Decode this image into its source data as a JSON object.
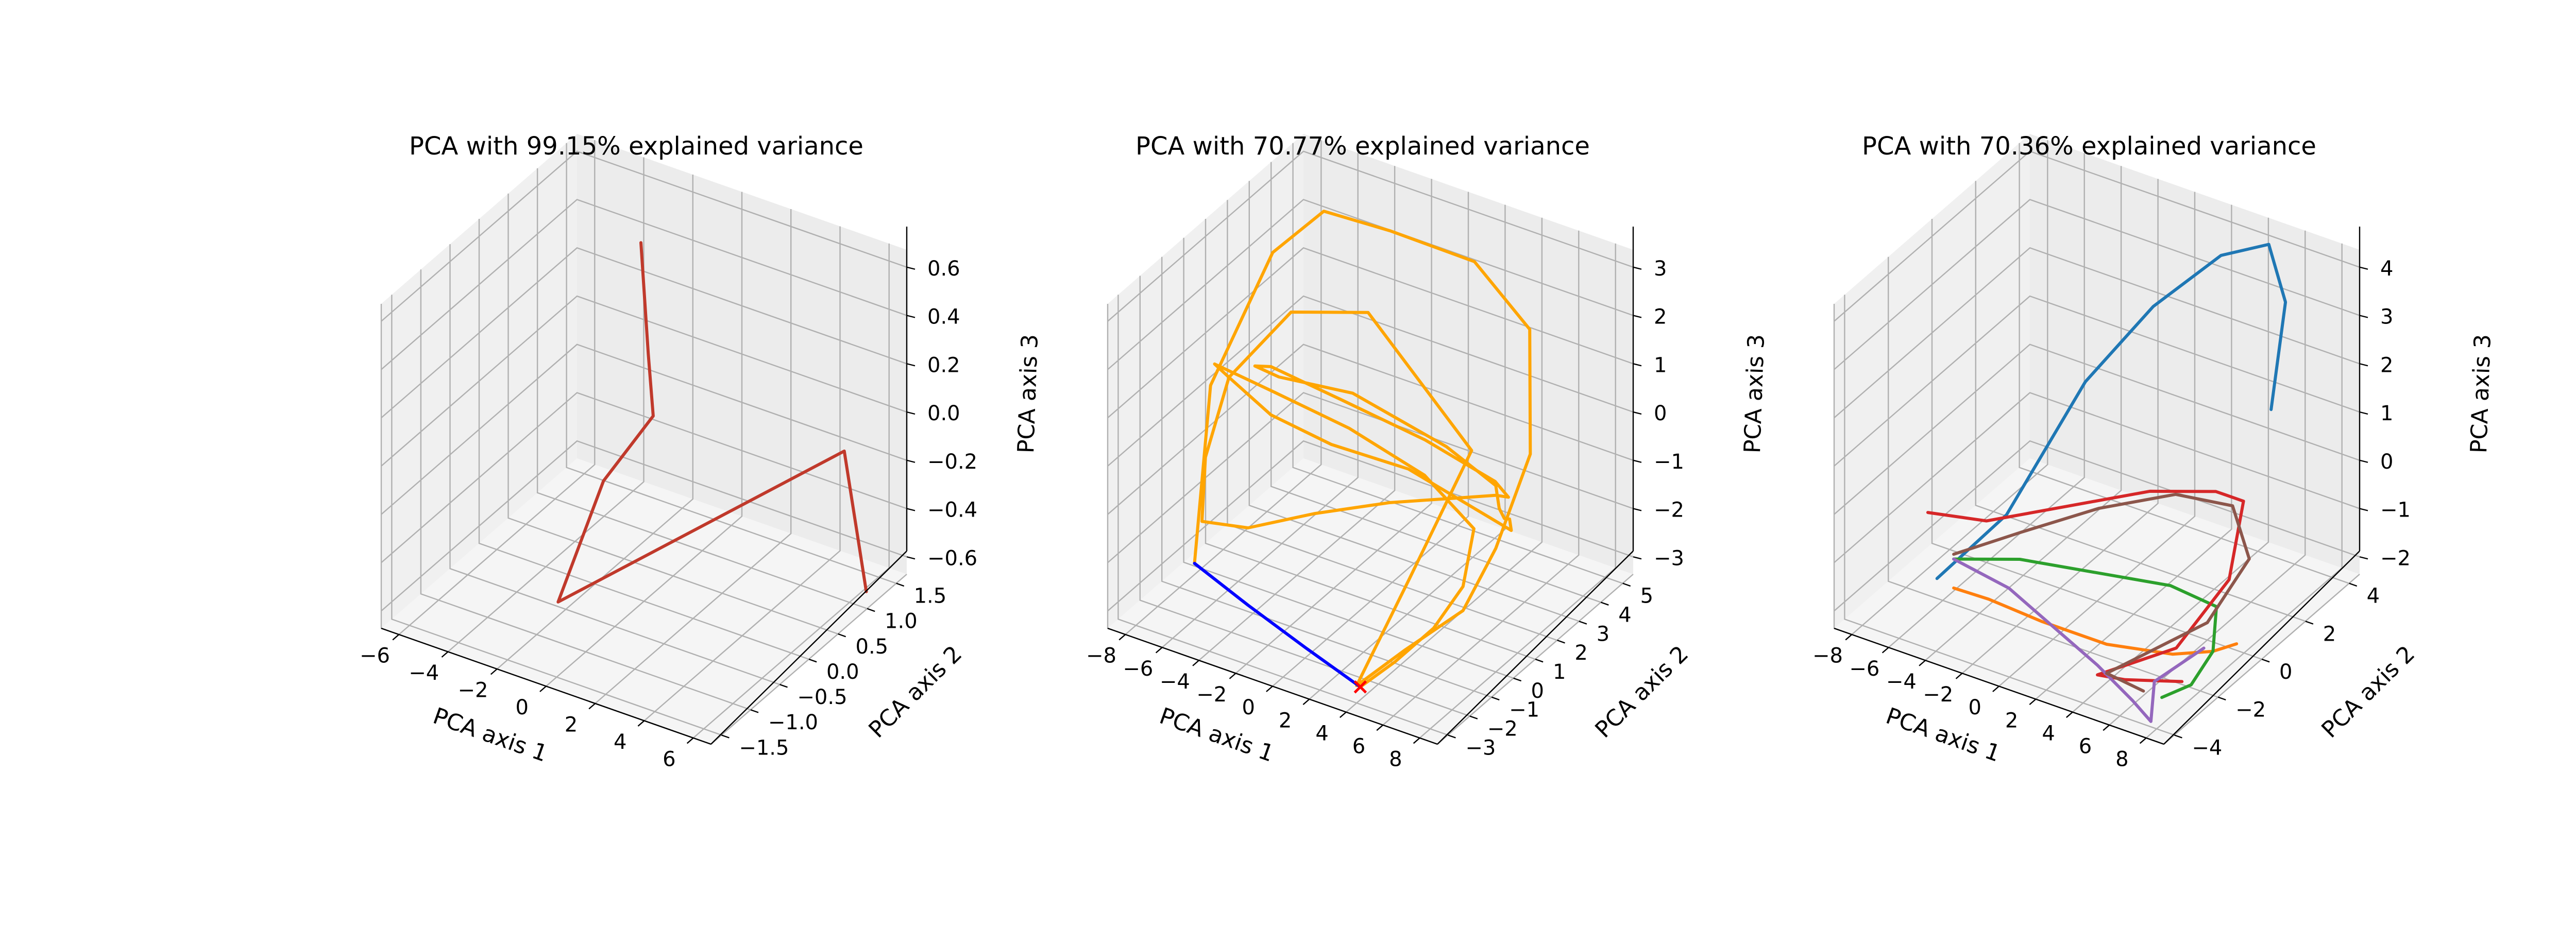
{
  "colors": {
    "red": "#c0392b",
    "orange": "#ffa500",
    "blue": "#0000ff",
    "tab_blue": "#1f77b4",
    "tab_orange": "#ff7f0e",
    "tab_green": "#2ca02c",
    "tab_red": "#d62728",
    "tab_purple": "#9467bd",
    "tab_brown": "#8c564b",
    "grid": "#b0b0b0",
    "pane": "#f2f2f2"
  },
  "chart_data": [
    {
      "type": "line3d",
      "title": "PCA with 99.15% explained variance",
      "xlabel": "PCA axis 1",
      "ylabel": "PCA axis 2",
      "zlabel": "PCA axis 3",
      "xticks": [
        "−6",
        "−4",
        "−2",
        "0",
        "2",
        "4",
        "6"
      ],
      "yticks": [
        "−1.5",
        "−1.0",
        "−0.5",
        "0.0",
        "0.5",
        "1.0",
        "1.5"
      ],
      "zticks": [
        "−0.6",
        "−0.4",
        "−0.2",
        "0.0",
        "0.2",
        "0.4",
        "0.6"
      ],
      "grid": true,
      "series": [
        {
          "color": "#c0392b",
          "x": [
            -0.6,
            -0.3,
            -0.1,
            -2.6,
            -3.5,
            4.6,
            5.5
          ],
          "y": [
            0.2,
            0.2,
            0.2,
            0.4,
            0.0,
            1.5,
            1.5
          ],
          "z": [
            0.75,
            0.3,
            0.05,
            -0.35,
            -0.8,
            -0.2,
            -0.75
          ]
        }
      ]
    },
    {
      "type": "line3d",
      "title": "PCA with 70.77% explained variance",
      "xlabel": "PCA axis 1",
      "ylabel": "PCA axis 2",
      "zlabel": "PCA axis 3",
      "xticks": [
        "−8",
        "−6",
        "−4",
        "−2",
        "0",
        "2",
        "4",
        "6",
        "8"
      ],
      "yticks": [
        "−3",
        "−2",
        "−1",
        "0",
        "1",
        "2",
        "3",
        "4",
        "5"
      ],
      "zticks": [
        "−3",
        "−2",
        "−1",
        "0",
        "1",
        "2",
        "3"
      ],
      "grid": true,
      "series": [
        {
          "color": "#ffa500",
          "x": [
            -6.0,
            -7.5,
            -6.5,
            -5.5,
            -2.5,
            1.5,
            4.5,
            7.5,
            8.0,
            8.0,
            6.0,
            4.0,
            4.5,
            5.5,
            -2.5,
            -5.5,
            -6.5,
            -6.0,
            -5.0,
            -2.5,
            0.5,
            4.0,
            7.0,
            8.0,
            7.5,
            5.0,
            0.0,
            -4.0,
            -6.0,
            -4.5,
            -2.0,
            2.0,
            6.5,
            8.0,
            7.0,
            5.5,
            4.0,
            3.5,
            -1.5,
            -4.5,
            -6.0,
            -6.5,
            -5.5,
            -1.0,
            3.0,
            6.5,
            8.0,
            8.0,
            7.0,
            5.5,
            4.2
          ],
          "y": [
            -2.0,
            0.0,
            2.0,
            3.5,
            4.0,
            4.5,
            4.5,
            2.0,
            0.0,
            -1.5,
            -2.5,
            -3.0,
            -1.0,
            1.0,
            3.0,
            2.0,
            0.0,
            -1.5,
            -2.5,
            -2.5,
            -2.0,
            -1.5,
            -1.0,
            0.0,
            1.0,
            2.5,
            3.5,
            3.0,
            1.5,
            -0.5,
            -1.5,
            -1.5,
            -1.0,
            0.0,
            1.0,
            2.5,
            4.0,
            4.5,
            4.0,
            3.0,
            1.5,
            0.0,
            -1.5,
            -2.5,
            -2.5,
            -2.0,
            -1.0,
            -1.5,
            -2.0,
            -2.5,
            -3.0
          ],
          "z": [
            -2.2,
            0.5,
            2.6,
            3.0,
            2.8,
            2.5,
            1.5,
            0.3,
            -0.8,
            -1.5,
            -2.2,
            -3.0,
            -1.5,
            0.5,
            1.5,
            1.5,
            0.8,
            -0.2,
            -1.0,
            -0.8,
            -0.3,
            0.2,
            0.5,
            0.3,
            -0.2,
            -0.8,
            -1.0,
            -0.5,
            0.5,
            1.5,
            2.0,
            2.2,
            1.5,
            0.5,
            -0.5,
            -1.5,
            -2.3,
            -2.8,
            -2.0,
            -1.5,
            -0.5,
            0.8,
            1.8,
            2.2,
            2.0,
            1.3,
            0.0,
            -1.0,
            -1.8,
            -2.5,
            -3.0
          ]
        },
        {
          "color": "#0000ff",
          "x": [
            -6.0,
            -2.5,
            1.0,
            4.2
          ],
          "y": [
            -2.0,
            -2.5,
            -2.8,
            -3.0
          ],
          "z": [
            -2.2,
            -2.4,
            -2.7,
            -3.0
          ]
        }
      ],
      "markers": [
        {
          "symbol": "x",
          "color": "#ff0000",
          "x": 4.2,
          "y": -3.0,
          "z": -3.0
        }
      ]
    },
    {
      "type": "line3d",
      "title": "PCA with 70.36% explained variance",
      "xlabel": "PCA axis 1",
      "ylabel": "PCA axis 2",
      "zlabel": "PCA axis 3",
      "xticks": [
        "−8",
        "−6",
        "−4",
        "−2",
        "0",
        "2",
        "4",
        "6",
        "8"
      ],
      "yticks": [
        "−4",
        "−2",
        "0",
        "2",
        "4"
      ],
      "zticks": [
        "−2",
        "−1",
        "0",
        "1",
        "2",
        "3",
        "4"
      ],
      "grid": true,
      "series": [
        {
          "color": "#1f77b4",
          "x": [
            -7.5,
            -5.5,
            -3.0,
            -0.5,
            2.0,
            4.0,
            5.5,
            6.5
          ],
          "y": [
            -1.0,
            0.5,
            2.0,
            3.0,
            4.0,
            4.5,
            4.0,
            2.5
          ],
          "z": [
            -2.5,
            -1.5,
            1.0,
            2.5,
            3.5,
            3.8,
            3.0,
            1.5
          ]
        },
        {
          "color": "#ff7f0e",
          "x": [
            -6.0,
            -3.5,
            0.0,
            3.5,
            6.5,
            7.5,
            7.0
          ],
          "y": [
            -1.5,
            -2.0,
            -2.5,
            -2.5,
            -2.0,
            -1.0,
            0.5
          ],
          "z": [
            -2.3,
            -2.0,
            -1.8,
            -1.8,
            -1.8,
            -2.0,
            -2.5
          ]
        },
        {
          "color": "#2ca02c",
          "x": [
            -6.0,
            -3.0,
            0.5,
            4.0,
            6.5,
            7.5,
            7.5,
            6.5
          ],
          "y": [
            -1.5,
            -1.0,
            -0.5,
            0.0,
            0.0,
            -1.0,
            -2.0,
            -2.5
          ],
          "z": [
            -1.7,
            -1.5,
            -1.5,
            -1.5,
            -1.6,
            -2.0,
            -2.3,
            -2.5
          ]
        },
        {
          "color": "#d62728",
          "x": [
            -8.0,
            -6.0,
            -3.0,
            0.5,
            3.5,
            5.0,
            6.0,
            5.5,
            3.0,
            4.5,
            7.0
          ],
          "y": [
            -1.0,
            0.0,
            1.0,
            2.0,
            2.5,
            2.5,
            1.0,
            -1.0,
            -2.5,
            -2.5,
            -2.0
          ],
          "z": [
            -1.2,
            -1.5,
            -1.2,
            -0.8,
            -0.6,
            -0.6,
            -1.5,
            -2.2,
            -2.5,
            -2.4,
            -2.3
          ]
        },
        {
          "color": "#9467bd",
          "x": [
            -6.0,
            -3.0,
            0.5,
            3.0,
            5.5,
            6.5,
            5.5,
            7.0
          ],
          "y": [
            -1.5,
            -1.5,
            -2.0,
            -2.5,
            -3.0,
            -3.0,
            -2.0,
            -1.0
          ],
          "z": [
            -1.7,
            -1.9,
            -2.2,
            -2.3,
            -2.5,
            -2.8,
            -2.5,
            -2.0
          ]
        },
        {
          "color": "#8c564b",
          "x": [
            -6.0,
            -3.5,
            -0.5,
            2.5,
            5.0,
            6.5,
            6.0,
            3.5,
            5.5
          ],
          "y": [
            -1.5,
            -0.5,
            0.5,
            1.5,
            2.0,
            1.5,
            0.0,
            -2.5,
            -2.5
          ],
          "z": [
            -1.6,
            -1.2,
            -0.7,
            -0.4,
            -0.5,
            -1.2,
            -2.0,
            -2.4,
            -2.5
          ]
        }
      ]
    }
  ]
}
